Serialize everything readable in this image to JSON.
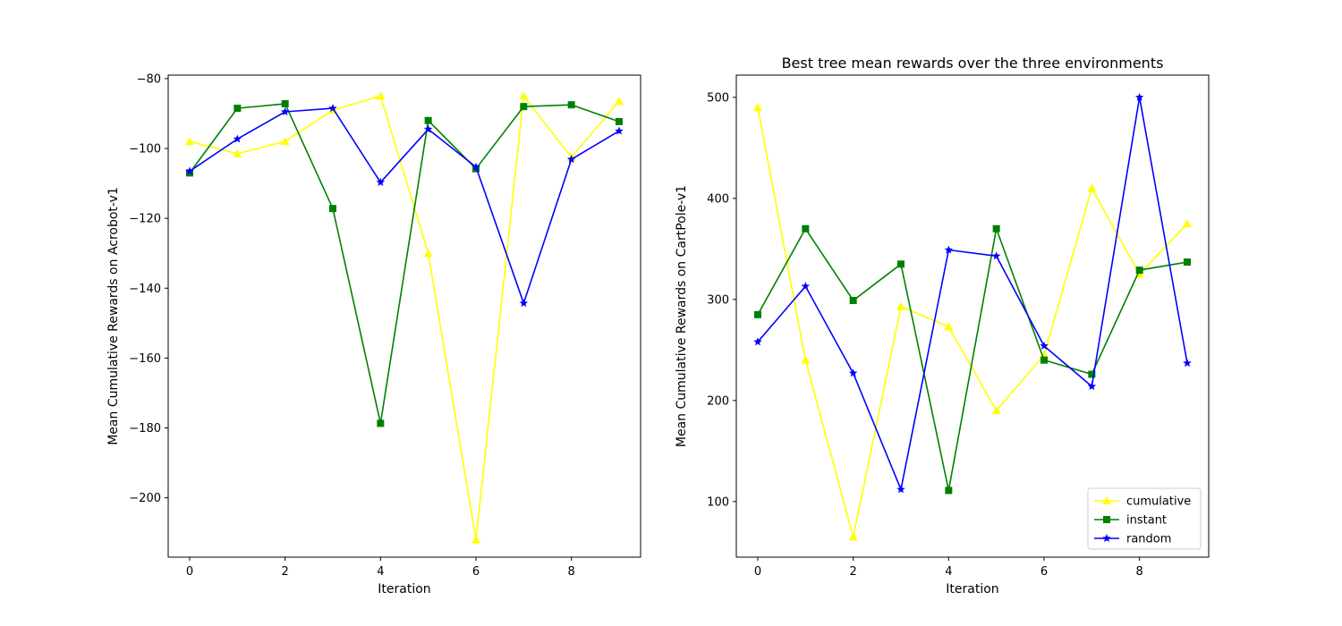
{
  "chart_data": [
    {
      "type": "line",
      "title": "",
      "xlabel": "Iteration",
      "ylabel": "Mean Cumulative Rewards on Acrobot-v1",
      "xlim": [
        -0.45,
        9.45
      ],
      "ylim": [
        -217,
        -79
      ],
      "xticks": [
        0,
        2,
        4,
        6,
        8
      ],
      "yticks": [
        -80,
        -100,
        -120,
        -140,
        -160,
        -180,
        -200
      ],
      "grid": false,
      "x": [
        0,
        1,
        2,
        3,
        4,
        5,
        6,
        7,
        8,
        9
      ],
      "series": [
        {
          "name": "cumulative",
          "color": "#ffff00",
          "marker": "triangle",
          "values": [
            -98,
            -101.5,
            -98,
            -89,
            -85,
            -130,
            -212,
            -85,
            -102.5,
            -86.5
          ]
        },
        {
          "name": "instant",
          "color": "#008000",
          "marker": "square",
          "values": [
            -107,
            -88.5,
            -87.2,
            -117.2,
            -178.7,
            -92,
            -105.8,
            -88,
            -87.5,
            -92.3
          ]
        },
        {
          "name": "random",
          "color": "#0000ff",
          "marker": "star",
          "values": [
            -106.5,
            -97.3,
            -89.5,
            -88.5,
            -109.7,
            -94.5,
            -105.3,
            -144.3,
            -103.1,
            -95
          ]
        }
      ]
    },
    {
      "type": "line",
      "title": "Best tree mean rewards over the three environments",
      "xlabel": "Iteration",
      "ylabel": "Mean Cumulative Rewards on CartPole-v1",
      "xlim": [
        -0.45,
        9.45
      ],
      "ylim": [
        45,
        522
      ],
      "xticks": [
        0,
        2,
        4,
        6,
        8
      ],
      "yticks": [
        100,
        200,
        300,
        400,
        500
      ],
      "grid": false,
      "legend": "lower right",
      "x": [
        0,
        1,
        2,
        3,
        4,
        5,
        6,
        7,
        8,
        9
      ],
      "series": [
        {
          "name": "cumulative",
          "color": "#ffff00",
          "marker": "triangle",
          "values": [
            490,
            240,
            65,
            293,
            273,
            190,
            245,
            410,
            325,
            375
          ]
        },
        {
          "name": "instant",
          "color": "#008000",
          "marker": "square",
          "values": [
            285,
            370,
            299,
            335,
            111,
            370,
            240,
            226,
            329,
            337
          ]
        },
        {
          "name": "random",
          "color": "#0000ff",
          "marker": "star",
          "values": [
            258,
            313,
            227,
            112,
            349,
            343,
            254,
            214,
            500,
            237
          ]
        }
      ]
    }
  ]
}
